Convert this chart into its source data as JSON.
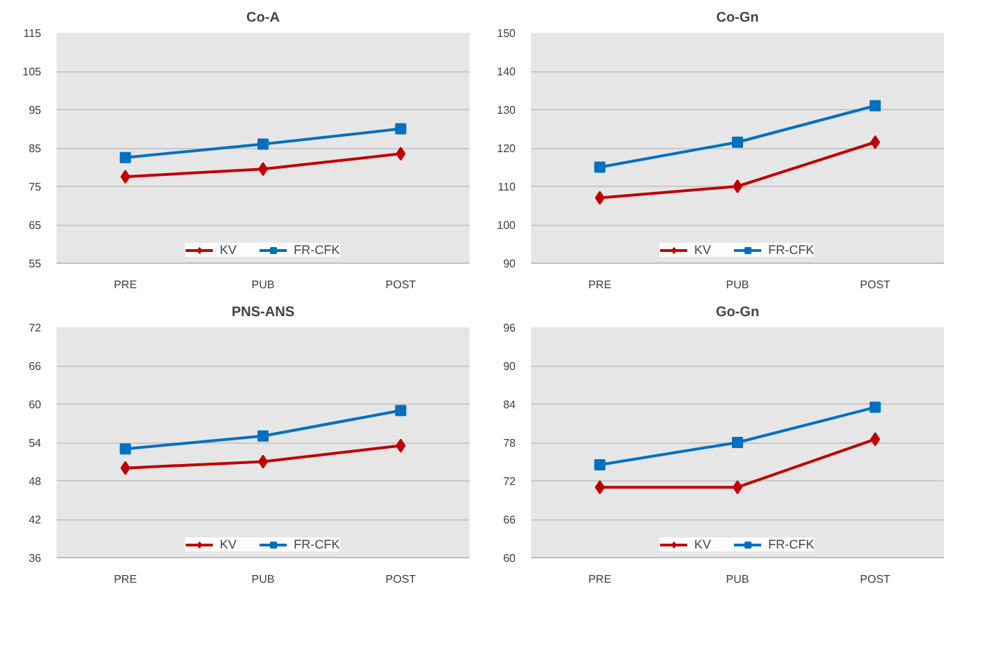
{
  "chart_data": [
    {
      "type": "line",
      "title": "Co-A",
      "categories": [
        "PRE",
        "PUB",
        "POST"
      ],
      "ylim": [
        55,
        115
      ],
      "yticks": [
        55,
        65,
        75,
        85,
        95,
        105,
        115
      ],
      "grid": "y",
      "legend": "bottom",
      "series": [
        {
          "name": "KV",
          "color": "#c00000",
          "marker": "diamond",
          "values": [
            77.5,
            79.5,
            83.5
          ]
        },
        {
          "name": "FR-CFK",
          "color": "#0070c0",
          "marker": "square",
          "values": [
            82.5,
            86,
            90
          ]
        }
      ]
    },
    {
      "type": "line",
      "title": "Co-Gn",
      "categories": [
        "PRE",
        "PUB",
        "POST"
      ],
      "ylim": [
        90,
        150
      ],
      "yticks": [
        90,
        100,
        110,
        120,
        130,
        140,
        150
      ],
      "grid": "y",
      "legend": "bottom",
      "series": [
        {
          "name": "KV",
          "color": "#c00000",
          "marker": "diamond",
          "values": [
            107,
            110,
            121.5
          ]
        },
        {
          "name": "FR-CFK",
          "color": "#0070c0",
          "marker": "square",
          "values": [
            115,
            121.5,
            131
          ]
        }
      ]
    },
    {
      "type": "line",
      "title": "PNS-ANS",
      "categories": [
        "PRE",
        "PUB",
        "POST"
      ],
      "ylim": [
        36,
        72
      ],
      "yticks": [
        36,
        42,
        48,
        54,
        60,
        66,
        72
      ],
      "grid": "y",
      "legend": "bottom",
      "series": [
        {
          "name": "KV",
          "color": "#c00000",
          "marker": "diamond",
          "values": [
            50,
            51,
            53.5
          ]
        },
        {
          "name": "FR-CFK",
          "color": "#0070c0",
          "marker": "square",
          "values": [
            53,
            55,
            59
          ]
        }
      ]
    },
    {
      "type": "line",
      "title": "Go-Gn",
      "categories": [
        "PRE",
        "PUB",
        "POST"
      ],
      "ylim": [
        60,
        96
      ],
      "yticks": [
        60,
        66,
        72,
        78,
        84,
        90,
        96
      ],
      "grid": "y",
      "legend": "bottom",
      "series": [
        {
          "name": "KV",
          "color": "#c00000",
          "marker": "diamond",
          "values": [
            71,
            71,
            78.5
          ]
        },
        {
          "name": "FR-CFK",
          "color": "#0070c0",
          "marker": "square",
          "values": [
            74.5,
            78,
            83.5
          ]
        }
      ]
    }
  ]
}
